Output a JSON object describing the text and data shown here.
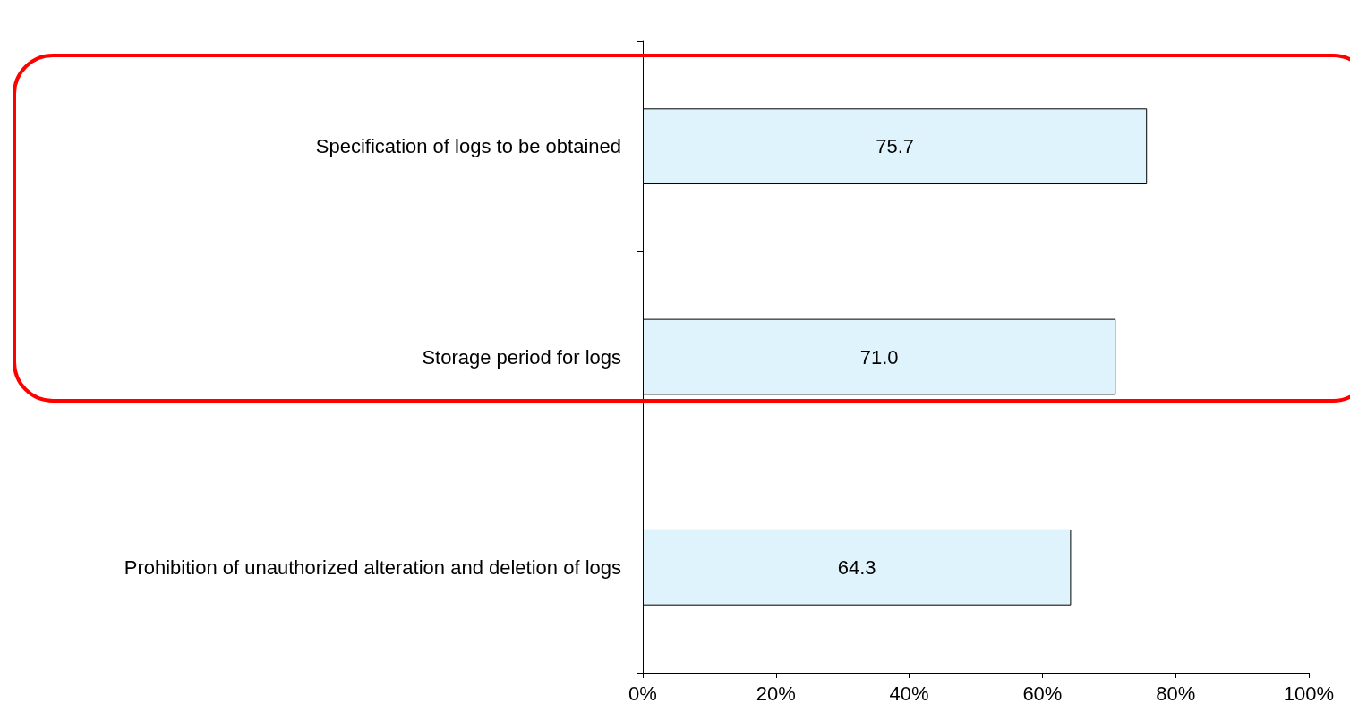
{
  "chart_data": {
    "type": "bar",
    "orientation": "horizontal",
    "categories": [
      "Specification of logs to be obtained",
      "Storage period for logs",
      "Prohibition of unauthorized alteration and deletion of logs"
    ],
    "series": [
      {
        "color": "#dff3fc",
        "values": [
          75.7,
          71.0,
          64.3
        ],
        "value_labels": [
          "75.7",
          "71.0",
          "64.3"
        ]
      }
    ],
    "xlim": [
      0,
      100
    ],
    "xticks": [
      {
        "value": 0,
        "label": "0%"
      },
      {
        "value": 20,
        "label": "20%"
      },
      {
        "value": 40,
        "label": "40%"
      },
      {
        "value": 60,
        "label": "60%"
      },
      {
        "value": 80,
        "label": "80%"
      },
      {
        "value": 100,
        "label": "100%"
      }
    ],
    "grid": false
  }
}
